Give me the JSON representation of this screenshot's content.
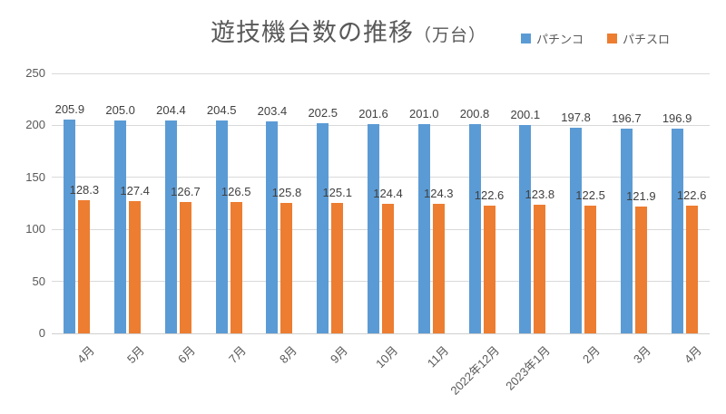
{
  "chart_data": {
    "type": "bar",
    "title": "遊技機台数の推移",
    "title_suffix": "（万台）",
    "categories": [
      "4月",
      "5月",
      "6月",
      "7月",
      "8月",
      "9月",
      "10月",
      "11月",
      "2022年12月",
      "2023年1月",
      "2月",
      "3月",
      "4月"
    ],
    "series": [
      {
        "name": "パチンコ",
        "color": "#5B9BD5",
        "values": [
          205.9,
          205.0,
          204.4,
          204.5,
          203.4,
          202.5,
          201.6,
          201.0,
          200.8,
          200.1,
          197.8,
          196.7,
          196.9
        ]
      },
      {
        "name": "パチスロ",
        "color": "#ED7D31",
        "values": [
          128.3,
          127.4,
          126.7,
          126.5,
          125.8,
          125.1,
          124.4,
          124.3,
          122.6,
          123.8,
          122.5,
          121.9,
          122.6
        ]
      }
    ],
    "ylim": [
      0,
      250
    ],
    "yticks": [
      0,
      50,
      100,
      150,
      200,
      250
    ],
    "grid": true,
    "legend_position": "top-right",
    "data_labels": true,
    "value_decimals": 1
  }
}
